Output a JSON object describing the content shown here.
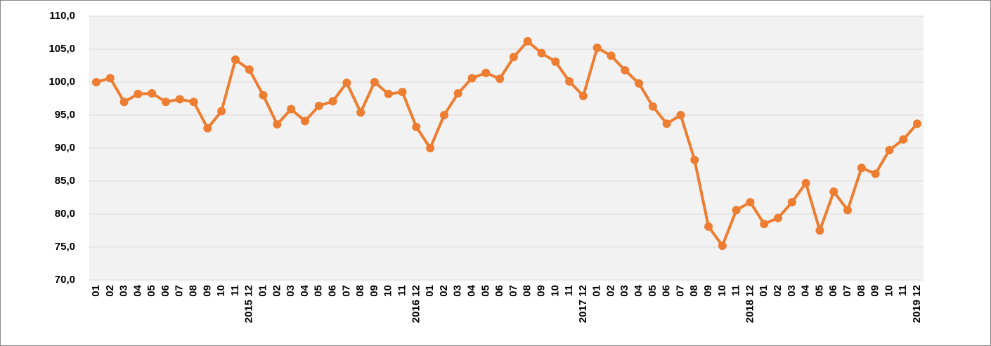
{
  "chart_data": {
    "type": "line",
    "categories": [
      "01",
      "02",
      "03",
      "04",
      "05",
      "06",
      "07",
      "08",
      "09",
      "10",
      "11",
      "2015 12",
      "01",
      "02",
      "03",
      "04",
      "05",
      "06",
      "07",
      "08",
      "09",
      "10",
      "11",
      "2016 12",
      "01",
      "02",
      "03",
      "04",
      "05",
      "06",
      "07",
      "08",
      "09",
      "10",
      "11",
      "2017 12",
      "01",
      "02",
      "03",
      "04",
      "05",
      "06",
      "07",
      "08",
      "09",
      "10",
      "11",
      "2018 12",
      "01",
      "02",
      "03",
      "04",
      "05",
      "06",
      "07",
      "08",
      "09",
      "10",
      "11",
      "2019 12"
    ],
    "series": [
      {
        "color": "#ed7d31",
        "values": [
          100.0,
          100.6,
          97.0,
          98.2,
          98.3,
          97.0,
          97.4,
          97.0,
          93.0,
          95.6,
          103.4,
          101.9,
          98.0,
          93.6,
          95.9,
          94.1,
          96.4,
          97.1,
          99.9,
          95.4,
          100.0,
          98.2,
          98.5,
          93.2,
          90.0,
          95.0,
          98.3,
          100.6,
          101.4,
          100.5,
          103.8,
          106.2,
          104.4,
          103.1,
          100.1,
          97.9,
          105.2,
          104.0,
          101.8,
          99.8,
          96.3,
          93.7,
          95.0,
          88.2,
          78.1,
          75.2,
          80.6,
          81.8,
          78.5,
          79.4,
          81.8,
          84.7,
          77.5,
          83.4,
          80.6,
          87.0,
          86.1,
          89.7,
          91.3,
          93.7
        ]
      }
    ],
    "ylim": [
      70,
      110
    ],
    "yticks": [
      {
        "value": 70,
        "label": "70,0"
      },
      {
        "value": 75,
        "label": "75,0"
      },
      {
        "value": 80,
        "label": "80,0"
      },
      {
        "value": 85,
        "label": "85,0"
      },
      {
        "value": 90,
        "label": "90,0"
      },
      {
        "value": 95,
        "label": "95,0"
      },
      {
        "value": 100,
        "label": "100,0"
      },
      {
        "value": 105,
        "label": "105,0"
      },
      {
        "value": 110,
        "label": "110,0"
      }
    ],
    "grid": true
  }
}
